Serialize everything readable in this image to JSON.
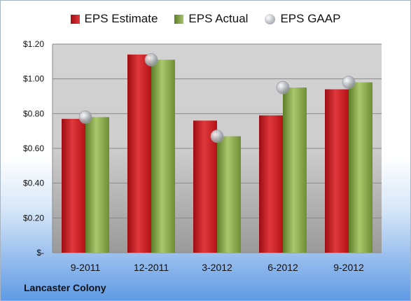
{
  "chart_data": {
    "type": "bar",
    "categories": [
      "9-2011",
      "12-2011",
      "3-2012",
      "6-2012",
      "9-2012"
    ],
    "series": [
      {
        "name": "EPS Estimate",
        "kind": "bar",
        "color": "#c0171c",
        "values": [
          0.77,
          1.14,
          0.76,
          0.79,
          0.94
        ]
      },
      {
        "name": "EPS Actual",
        "kind": "bar",
        "color": "#7f9a3e",
        "values": [
          0.78,
          1.11,
          0.67,
          0.95,
          0.98
        ]
      },
      {
        "name": "EPS GAAP",
        "kind": "marker",
        "color": "#b0b4b9",
        "values": [
          0.78,
          1.11,
          0.67,
          0.95,
          0.98
        ]
      }
    ],
    "ylim": [
      0,
      1.2
    ],
    "yticks": [
      0,
      0.2,
      0.4,
      0.6,
      0.8,
      1.0,
      1.2
    ],
    "ytick_labels": [
      "$-",
      "$0.20",
      "$0.40",
      "$0.60",
      "$0.80",
      "$1.00",
      "$1.20"
    ],
    "grid": true,
    "legend_position": "top"
  },
  "footer": {
    "company": "Lancaster Colony"
  }
}
